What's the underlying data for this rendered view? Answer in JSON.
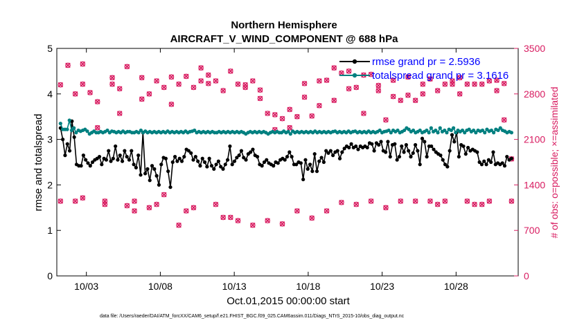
{
  "chart_data": {
    "type": "line",
    "title": "Northern Hemisphere",
    "subtitle": "AIRCRAFT_V_WIND_COMPONENT @ 688 hPa",
    "xlabel": "Oct.01,2015 00:00:00 start",
    "ylabel_left": "rmse and totalspread",
    "ylabel_right": "# of obs: o=possible; ×=assimilated",
    "footer": "data file: /Users/raeder/DAI/ATM_forcXX/CAM6_setup/f.e21.FHIST_BGC.f09_025.CAM6assim.011/Diags_NTrS_2015-10/obs_diag_output.nc",
    "xlim": [
      1.0,
      32.2
    ],
    "ylim_left": [
      0,
      5
    ],
    "ylim_right": [
      0,
      3500
    ],
    "x_ticks": [
      3,
      8,
      13,
      18,
      23,
      28
    ],
    "x_tick_labels": [
      "10/03",
      "10/08",
      "10/13",
      "10/18",
      "10/23",
      "10/28"
    ],
    "y_ticks_left": [
      0,
      1,
      2,
      3,
      4,
      5
    ],
    "y_ticks_right": [
      0,
      700,
      1400,
      2100,
      2800,
      3500
    ],
    "grid": false,
    "legend_placement": "top-right",
    "series": [
      {
        "name": "rmse grand pr = 2.5936",
        "axis": "left",
        "color": "#000000",
        "marker": "circle",
        "values": [
          3.25,
          3.0,
          2.65,
          2.9,
          2.75,
          3.4,
          3.05,
          2.45,
          2.42,
          2.42,
          2.65,
          2.55,
          2.48,
          2.42,
          2.5,
          2.55,
          2.58,
          2.62,
          2.45,
          2.58,
          2.55,
          2.75,
          2.52,
          2.58,
          2.85,
          2.55,
          2.65,
          2.52,
          2.75,
          2.62,
          2.55,
          2.75,
          2.45,
          2.38,
          2.65,
          2.22,
          3.15,
          2.25,
          2.35,
          2.1,
          2.42,
          2.35,
          2.2,
          2.0,
          2.45,
          2.6,
          2.58,
          2.3,
          1.95,
          2.5,
          2.62,
          2.52,
          2.58,
          2.52,
          2.62,
          2.78,
          2.75,
          2.7,
          2.55,
          2.62,
          2.52,
          2.42,
          2.58,
          2.5,
          2.4,
          2.58,
          2.42,
          2.35,
          2.45,
          2.52,
          2.4,
          2.35,
          2.45,
          2.55,
          2.85,
          2.45,
          2.52,
          2.6,
          2.65,
          2.75,
          2.6,
          2.55,
          2.68,
          2.72,
          2.78,
          2.65,
          2.62,
          2.45,
          2.42,
          2.5,
          2.55,
          2.48,
          2.45,
          2.42,
          2.5,
          2.48,
          2.55,
          2.58,
          2.55,
          2.62,
          2.72,
          2.62,
          2.45,
          2.45,
          2.5,
          2.48,
          2.12,
          2.55,
          2.35,
          2.45,
          2.3,
          2.68,
          2.3,
          2.52,
          2.6,
          2.5,
          2.75,
          2.7,
          2.75,
          2.65,
          2.72,
          2.75,
          2.58,
          2.72,
          2.8,
          2.85,
          2.82,
          2.9,
          2.82,
          2.85,
          2.78,
          2.85,
          2.82,
          2.85,
          2.82,
          2.92,
          2.9,
          2.75,
          2.92,
          2.88,
          2.95,
          2.75,
          2.72,
          2.95,
          2.62,
          2.88,
          2.9,
          2.55,
          2.62,
          2.85,
          2.72,
          2.88,
          2.75,
          2.62,
          2.7,
          2.88,
          2.75,
          2.45,
          3.02,
          2.95,
          2.62,
          2.85,
          2.85,
          2.78,
          2.72,
          2.68,
          2.65,
          2.55,
          2.45,
          2.4,
          2.75,
          3.1,
          2.95,
          3.15,
          2.62,
          2.88,
          2.85,
          2.68,
          2.82,
          2.75,
          2.78,
          2.75,
          2.72,
          2.5,
          2.45,
          2.52,
          2.45,
          2.55,
          2.5,
          2.72,
          2.45,
          2.48,
          2.45,
          2.48,
          2.42,
          2.62,
          2.55,
          2.58
        ]
      },
      {
        "name": "totalspread grand pr = 3.1616",
        "axis": "left",
        "color": "#008080",
        "marker": "circle",
        "values": [
          3.35,
          3.22,
          3.22,
          3.22,
          3.42,
          3.2,
          3.25,
          3.15,
          3.2,
          3.18,
          3.2,
          3.22,
          3.18,
          3.12,
          3.15,
          3.18,
          3.15,
          3.15,
          3.17,
          3.15,
          3.17,
          3.2,
          3.15,
          3.18,
          3.17,
          3.15,
          3.17,
          3.15,
          3.18,
          3.15,
          3.17,
          3.17,
          3.15,
          3.15,
          3.17,
          3.15,
          3.2,
          3.15,
          3.18,
          3.15,
          3.17,
          3.15,
          3.17,
          3.15,
          3.17,
          3.15,
          3.17,
          3.15,
          3.18,
          3.15,
          3.17,
          3.15,
          3.17,
          3.15,
          3.17,
          3.15,
          3.18,
          3.15,
          3.17,
          3.18,
          3.2,
          3.15,
          3.17,
          3.15,
          3.17,
          3.15,
          3.17,
          3.15,
          3.17,
          3.15,
          3.15,
          3.17,
          3.15,
          3.17,
          3.15,
          3.17,
          3.15,
          3.17,
          3.15,
          3.17,
          3.15,
          3.17,
          3.15,
          3.12,
          3.15,
          3.17,
          3.15,
          3.17,
          3.15,
          3.17,
          3.15,
          3.17,
          3.15,
          3.12,
          3.15,
          3.17,
          3.15,
          3.17,
          3.15,
          3.15,
          3.18,
          3.15,
          3.17,
          3.12,
          3.18,
          3.15,
          3.17,
          3.15,
          3.17,
          3.15,
          3.17,
          3.15,
          3.17,
          3.15,
          3.18,
          3.15,
          3.17,
          3.15,
          3.17,
          3.15,
          3.17,
          3.15,
          3.17,
          3.18,
          3.15,
          3.17,
          3.15,
          3.17,
          3.15,
          3.18,
          3.15,
          3.17,
          3.18,
          3.15,
          3.17,
          3.15,
          3.17,
          3.15,
          3.18,
          3.15,
          3.17,
          3.15,
          3.17,
          3.2,
          3.15,
          3.17,
          3.18,
          3.2,
          3.15,
          3.2,
          3.17,
          3.2,
          3.15,
          3.17,
          3.2,
          3.25,
          3.22,
          3.17,
          3.2,
          3.15,
          3.17,
          3.2,
          3.15,
          3.17,
          3.2,
          3.15,
          3.25,
          3.17,
          3.2,
          3.15,
          3.25,
          3.17,
          3.2,
          3.15,
          3.22,
          3.2,
          3.25,
          3.15,
          3.2,
          3.17,
          3.2,
          3.15,
          3.2,
          3.22,
          3.17,
          3.2,
          3.15,
          3.2,
          3.18,
          3.2,
          3.15,
          3.22,
          3.18,
          3.2,
          3.15,
          3.22,
          3.2,
          3.25,
          3.2,
          3.18,
          3.15,
          3.17,
          3.15
        ]
      }
    ],
    "obs_counts": {
      "axis": "right",
      "color": "#d81b60",
      "marker_possible": "circle",
      "marker_assimilated": "x",
      "x": [
        1.25,
        1.75,
        1.25,
        2.25,
        2.75,
        2.25,
        2.75,
        3.25,
        2.75,
        3.75,
        3.75,
        4.25,
        4.75,
        4.25,
        4.75,
        5.25,
        5.75,
        5.25,
        5.75,
        6.25,
        6.75,
        6.25,
        6.75,
        7.25,
        7.75,
        7.25,
        7.75,
        8.25,
        8.75,
        8.25,
        8.75,
        9.25,
        9.75,
        9.25,
        9.75,
        10.25,
        10.75,
        10.25,
        10.75,
        11.25,
        11.75,
        11.25,
        11.75,
        12.25,
        12.75,
        12.25,
        12.75,
        13.25,
        13.75,
        13.25,
        13.75,
        14.25,
        14.75,
        14.25,
        14.75,
        15.25,
        15.75,
        15.25,
        15.75,
        16.25,
        16.75,
        16.25,
        16.75,
        17.25,
        17.75,
        17.25,
        17.75,
        18.25,
        18.75,
        18.25,
        18.75,
        19.25,
        19.75,
        19.25,
        19.75,
        20.25,
        20.75,
        20.25,
        20.75,
        21.25,
        21.75,
        21.25,
        21.75,
        22.25,
        22.75,
        22.25,
        22.75,
        23.25,
        23.75,
        23.25,
        23.75,
        24.25,
        24.75,
        24.25,
        24.75,
        25.25,
        25.75,
        25.25,
        25.75,
        26.25,
        26.75,
        26.25,
        26.75,
        27.25,
        27.75,
        27.25,
        27.75,
        28.25,
        28.75,
        28.25,
        28.75,
        29.25,
        29.75,
        29.25,
        29.75,
        30.25,
        30.75,
        30.25,
        30.75,
        31.25,
        31.75,
        31.25,
        31.75
      ],
      "values": [
        2940,
        3240,
        1150,
        2800,
        3260,
        1150,
        2950,
        2820,
        1200,
        2680,
        2280,
        1100,
        2950,
        1150,
        3050,
        2500,
        1080,
        2880,
        3220,
        1150,
        3050,
        1000,
        2720,
        1050,
        3000,
        2800,
        1100,
        2900,
        2640,
        1250,
        3060,
        780,
        3070,
        2950,
        1000,
        2900,
        3200,
        1050,
        3000,
        3090,
        1100,
        2960,
        3000,
        900,
        3150,
        2850,
        900,
        2950,
        2940,
        850,
        2900,
        3000,
        2860,
        780,
        2730,
        2500,
        2480,
        850,
        2250,
        2420,
        2280,
        800,
        2560,
        2450,
        2750,
        1000,
        2960,
        2460,
        3000,
        890,
        2620,
        3010,
        2700,
        1000,
        3200,
        1130,
        3150,
        3120,
        2880,
        1100,
        3090,
        2900,
        2500,
        1150,
        2930,
        3100,
        2850,
        1050,
        3010,
        2400,
        2760,
        1150,
        3060,
        2700,
        2780,
        1150,
        2950,
        2700,
        2800,
        1150,
        2850,
        3030,
        1100,
        2950,
        3000,
        1150,
        2950,
        2800,
        1150,
        3050,
        2950,
        1100,
        2950,
        2950,
        1100,
        3000,
        3010,
        1150,
        2850,
        2400,
        1150,
        2960,
        1800
      ]
    }
  }
}
